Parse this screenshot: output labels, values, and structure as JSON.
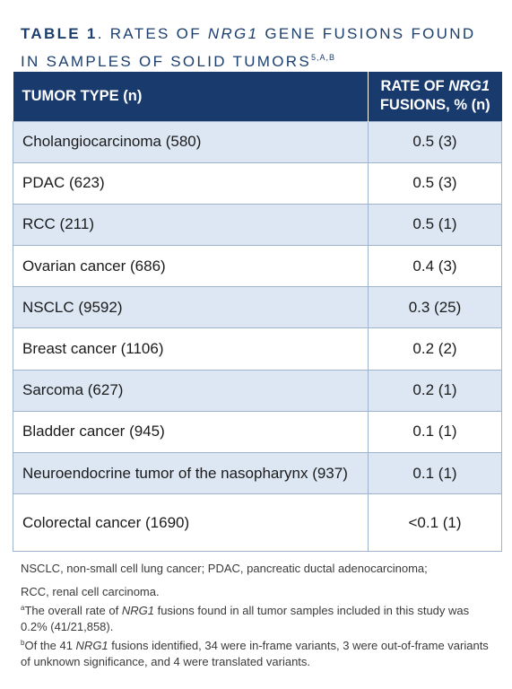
{
  "title": {
    "lead": "TABLE 1",
    "pre": ". RATES OF ",
    "gene": "NRG1",
    "post": " GENE FUSIONS FOUND IN SAMPLES OF SOLID TUMORS",
    "sup": "5,a,b"
  },
  "table": {
    "headers": {
      "tumor": "TUMOR TYPE (n)",
      "rate_pre": "RATE OF ",
      "rate_gene": "NRG1",
      "rate_post": "FUSIONS, % (n)"
    },
    "rows": [
      {
        "tumor": "Cholangiocarcinoma (580)",
        "rate": "0.5 (3)"
      },
      {
        "tumor": "PDAC (623)",
        "rate": "0.5 (3)"
      },
      {
        "tumor": "RCC (211)",
        "rate": "0.5 (1)"
      },
      {
        "tumor": "Ovarian cancer (686)",
        "rate": "0.4 (3)"
      },
      {
        "tumor": "NSCLC (9592)",
        "rate": "0.3 (25)"
      },
      {
        "tumor": "Breast cancer (1106)",
        "rate": "0.2 (2)"
      },
      {
        "tumor": "Sarcoma (627)",
        "rate": "0.2 (1)"
      },
      {
        "tumor": "Bladder cancer (945)",
        "rate": "0.1 (1)"
      },
      {
        "tumor": "Neuroendocrine tumor of the nasopharynx (937)",
        "rate": "0.1 (1)"
      },
      {
        "tumor": "Colorectal cancer (1690)",
        "rate": "<0.1 (1)"
      }
    ]
  },
  "notes": {
    "abbrev_1": "NSCLC, non-small cell lung cancer; PDAC, pancreatic ductal adenocarcinoma;",
    "abbrev_2": "RCC, renal cell carcinoma.",
    "a_mark": "a",
    "a_pre": "The overall rate of ",
    "a_gene": "NRG1",
    "a_post": " fusions found in all tumor samples included in this study was 0.2% (41/21,858).",
    "b_mark": "b",
    "b_pre": "Of the 41 ",
    "b_gene": "NRG1",
    "b_post": " fusions identified, 34 were in-frame variants, 3 were out-of-frame variants of unknown significance, and 4 were translated variants."
  }
}
